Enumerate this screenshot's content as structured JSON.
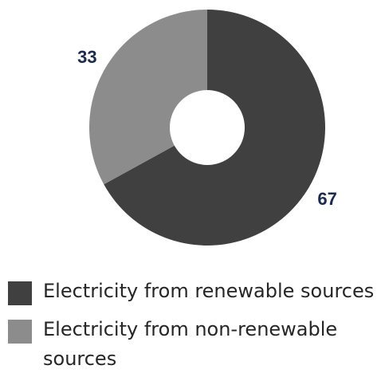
{
  "chart_data": {
    "type": "pie",
    "categories": [
      "Electricity from renewable sources",
      "Electricity from non-renewable sources"
    ],
    "values": [
      67,
      33
    ],
    "data_labels": [
      "67",
      "33"
    ],
    "colors": [
      "#404040",
      "#8c8c8c"
    ],
    "hole": "donut",
    "start_angle": "12 o'clock, clockwise",
    "legend_position": "bottom-left",
    "label_color": "#1b2a4e"
  },
  "legend": {
    "items": [
      {
        "label": "Electricity from renewable sources",
        "color": "#404040"
      },
      {
        "label": "Electricity from non-renewable sources",
        "color": "#8c8c8c"
      }
    ]
  }
}
